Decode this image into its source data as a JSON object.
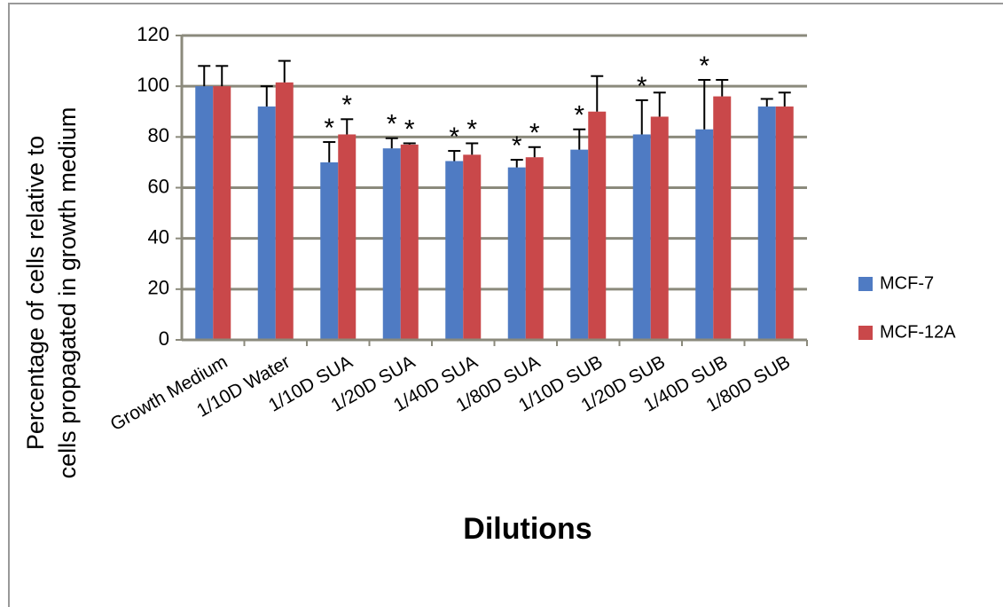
{
  "chart_data": {
    "type": "bar",
    "ylabel": [
      "Percentage of cells relative to",
      "cells propagated in growth medium"
    ],
    "xlabel": "Dilutions",
    "categories": [
      "Growth Medium",
      "1/10D Water",
      "1/10D SUA",
      "1/20D SUA",
      "1/40D SUA",
      "1/80D SUA",
      "1/10D SUB",
      "1/20D SUB",
      "1/40D SUB",
      "1/80D SUB"
    ],
    "series": [
      {
        "name": "MCF-7",
        "color": "#4f7bc3",
        "values": [
          100,
          92,
          70,
          75.5,
          70.5,
          68,
          75,
          81,
          83,
          92
        ],
        "errors": [
          8,
          8,
          8,
          4,
          4,
          3,
          8,
          13.5,
          19.5,
          3
        ]
      },
      {
        "name": "MCF-12A",
        "color": "#c9484a",
        "values": [
          100,
          101.5,
          81,
          77,
          73,
          72,
          90,
          88,
          96,
          92
        ],
        "errors": [
          8,
          8.5,
          6,
          0.5,
          4.5,
          4,
          14,
          9.5,
          6.5,
          5.5
        ]
      }
    ],
    "annotations": [
      {
        "text": "*",
        "category": "1/10D SUA",
        "series": "MCF-7"
      },
      {
        "text": "*",
        "category": "1/10D SUA",
        "series": "MCF-12A"
      },
      {
        "text": "*",
        "category": "1/20D SUA",
        "series": "MCF-7"
      },
      {
        "text": "*",
        "category": "1/20D SUA",
        "series": "MCF-12A"
      },
      {
        "text": "*",
        "category": "1/40D SUA",
        "series": "MCF-7"
      },
      {
        "text": "*",
        "category": "1/40D SUA",
        "series": "MCF-12A"
      },
      {
        "text": "*",
        "category": "1/80D SUA",
        "series": "MCF-7"
      },
      {
        "text": "*",
        "category": "1/80D SUA",
        "series": "MCF-12A"
      },
      {
        "text": "*",
        "category": "1/10D SUB",
        "series": "MCF-7"
      },
      {
        "text": "*",
        "category": "1/20D SUB",
        "series": "MCF-7"
      },
      {
        "text": "*",
        "category": "1/40D SUB",
        "series": "MCF-7"
      }
    ],
    "ylim": [
      0,
      120
    ],
    "yticks": [
      0,
      20,
      40,
      60,
      80,
      100,
      120
    ],
    "grid": true,
    "legend": "right"
  }
}
